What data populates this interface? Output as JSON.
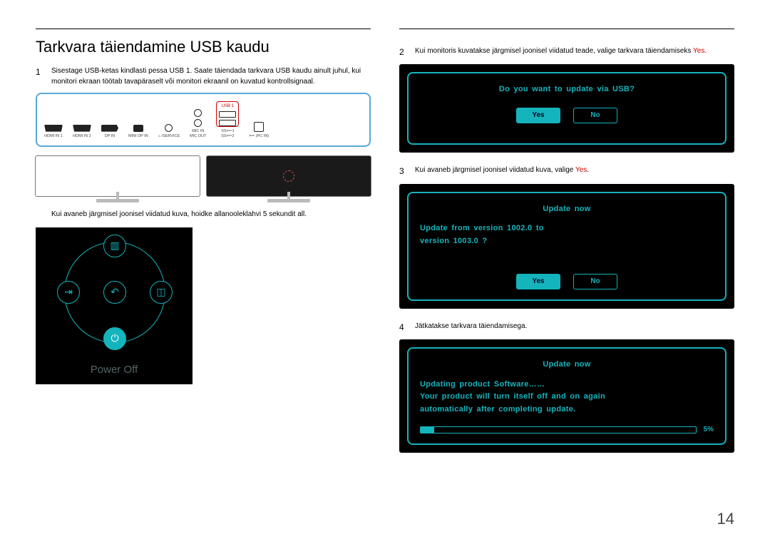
{
  "page_number": "14",
  "title": "Tarkvara täiendamine USB kaudu",
  "steps": {
    "s1": {
      "num": "1",
      "text_a": "Sisestage USB-ketas kindlasti pessa USB 1. Saate täiendada tarkvara USB kaudu ainult juhul, kui monitori ekraan töötab tavapäraselt või monitori ekraanil on kuvatud kontrollsignaal."
    },
    "s1b": {
      "text": "Kui avaneb järgmisel joonisel viidatud kuva, hoidke allanooleklahvi 5 sekundit all."
    },
    "s2": {
      "num": "2",
      "text_a": "Kui monitoris kuvatakse järgmisel joonisel viidatud teade, valige tarkvara täiendamiseks ",
      "text_b": "Yes",
      "text_c": "."
    },
    "s3": {
      "num": "3",
      "text_a": "Kui avaneb järgmisel joonisel viidatud kuva, valige ",
      "text_b": "Yes",
      "text_c": "."
    },
    "s4": {
      "num": "4",
      "text_a": "Jätkatakse tarkvara täiendamisega."
    }
  },
  "ports": {
    "usb1_label": "USB 1",
    "hdmi1": "HDMI IN 1",
    "hdmi2": "HDMI IN 2",
    "dp": "DP IN",
    "minidp": "MINI DP IN",
    "service": "⌂ /SERVICE",
    "mic": "MIC IN\nMIC OUT",
    "ss1": "SS⟸1\nSS⟸2",
    "pcin": "⟸ (PC IN)"
  },
  "jog": {
    "power_off": "Power Off"
  },
  "osd1": {
    "title": "Do  you  want  to update  via  USB?",
    "yes": "Yes",
    "no": "No"
  },
  "osd2": {
    "title": "Update now",
    "line1": "Update   from   version        1002.0        to",
    "line2": "version        1003.0        ?",
    "yes": "Yes",
    "no": "No"
  },
  "osd3": {
    "title": "Update now",
    "line1": "Updating  product  Software……",
    "line2": "Your  product  will   turn  itself  off   and  on   again",
    "line3": "automatically  after  completing   update.",
    "progress_pct": 5,
    "progress_label": "5%"
  },
  "colors": {
    "accent": "#14b4bd",
    "port_border": "#5aa8d8",
    "red": "#c00"
  }
}
